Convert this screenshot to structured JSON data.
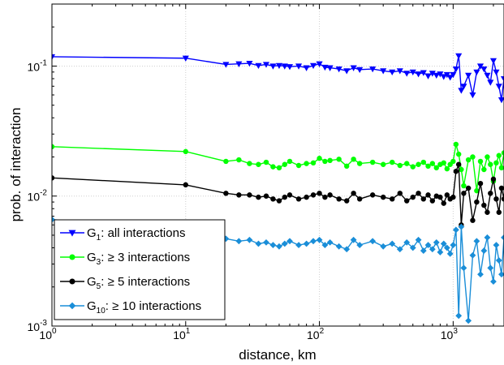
{
  "chart_data": {
    "type": "line",
    "title": "",
    "xlabel": "distance, km",
    "ylabel": "prob. of interaction",
    "xscale": "log",
    "yscale": "log",
    "xlim": [
      1,
      2400
    ],
    "ylim": [
      0.001,
      0.3
    ],
    "x_ticks": [
      {
        "base": "10",
        "exp": "0",
        "value": 1
      },
      {
        "base": "10",
        "exp": "1",
        "value": 10
      },
      {
        "base": "10",
        "exp": "2",
        "value": 100
      },
      {
        "base": "10",
        "exp": "3",
        "value": 1000
      }
    ],
    "y_ticks": [
      {
        "base": "10",
        "exp": "-3",
        "value": 0.001
      },
      {
        "base": "10",
        "exp": "-2",
        "value": 0.01
      },
      {
        "base": "10",
        "exp": "-1",
        "value": 0.1
      }
    ],
    "grid": true,
    "legend": {
      "placement": "bottom-left"
    },
    "series": [
      {
        "name": "G1: all interactions",
        "name_main": "G",
        "name_sub": "1",
        "name_rest": ": all interactions",
        "color": "#0000ff",
        "marker": "triangle-down",
        "x": [
          1,
          10,
          20,
          25,
          30,
          35,
          40,
          45,
          50,
          55,
          60,
          70,
          80,
          90,
          100,
          110,
          120,
          140,
          160,
          180,
          200,
          250,
          300,
          350,
          400,
          450,
          500,
          550,
          600,
          650,
          700,
          750,
          800,
          850,
          900,
          950,
          1000,
          1050,
          1100,
          1150,
          1200,
          1300,
          1400,
          1500,
          1600,
          1700,
          1800,
          1900,
          2000,
          2100,
          2200,
          2300,
          2400
        ],
        "y": [
          0.118,
          0.115,
          0.103,
          0.104,
          0.105,
          0.101,
          0.103,
          0.1,
          0.101,
          0.1,
          0.099,
          0.1,
          0.097,
          0.101,
          0.104,
          0.098,
          0.097,
          0.095,
          0.092,
          0.097,
          0.094,
          0.095,
          0.092,
          0.09,
          0.092,
          0.088,
          0.09,
          0.087,
          0.089,
          0.084,
          0.088,
          0.085,
          0.087,
          0.083,
          0.086,
          0.082,
          0.086,
          0.095,
          0.12,
          0.065,
          0.07,
          0.085,
          0.06,
          0.09,
          0.1,
          0.095,
          0.085,
          0.075,
          0.11,
          0.09,
          0.07,
          0.055,
          0.08
        ]
      },
      {
        "name": "G3: ≥ 3 interactions",
        "name_main": "G",
        "name_sub": "3",
        "name_rest": ": ≥ 3 interactions",
        "color": "#00ff00",
        "marker": "circle",
        "x": [
          1,
          10,
          20,
          25,
          30,
          35,
          40,
          45,
          50,
          55,
          60,
          70,
          80,
          90,
          100,
          110,
          120,
          140,
          160,
          180,
          200,
          250,
          300,
          350,
          400,
          450,
          500,
          550,
          600,
          650,
          700,
          750,
          800,
          850,
          900,
          950,
          1000,
          1050,
          1100,
          1150,
          1200,
          1300,
          1400,
          1500,
          1600,
          1700,
          1800,
          1900,
          2000,
          2100,
          2200,
          2300,
          2400
        ],
        "y": [
          0.024,
          0.022,
          0.0185,
          0.019,
          0.0178,
          0.0175,
          0.0182,
          0.0168,
          0.0165,
          0.0175,
          0.0185,
          0.0172,
          0.0178,
          0.018,
          0.0195,
          0.0185,
          0.0188,
          0.0192,
          0.017,
          0.0192,
          0.0178,
          0.0182,
          0.0175,
          0.0182,
          0.0172,
          0.0178,
          0.0168,
          0.0175,
          0.0182,
          0.017,
          0.0178,
          0.0165,
          0.0175,
          0.018,
          0.0162,
          0.0175,
          0.0185,
          0.025,
          0.021,
          0.016,
          0.012,
          0.019,
          0.02,
          0.011,
          0.0185,
          0.016,
          0.02,
          0.0175,
          0.013,
          0.018,
          0.0205,
          0.0165,
          0.0215
        ]
      },
      {
        "name": "G5: ≥ 5 interactions",
        "name_main": "G",
        "name_sub": "5",
        "name_rest": ": ≥ 5 interactions",
        "color": "#000000",
        "marker": "circle",
        "x": [
          1,
          10,
          20,
          25,
          30,
          35,
          40,
          45,
          50,
          55,
          60,
          70,
          80,
          90,
          100,
          110,
          120,
          140,
          160,
          180,
          200,
          250,
          300,
          350,
          400,
          450,
          500,
          550,
          600,
          650,
          700,
          750,
          800,
          850,
          900,
          950,
          1000,
          1050,
          1100,
          1150,
          1200,
          1300,
          1400,
          1500,
          1600,
          1700,
          1800,
          1900,
          2000,
          2100,
          2200,
          2300,
          2400
        ],
        "y": [
          0.0138,
          0.0122,
          0.0105,
          0.0102,
          0.0102,
          0.0098,
          0.01,
          0.0095,
          0.0092,
          0.0098,
          0.0102,
          0.0095,
          0.0098,
          0.0102,
          0.0105,
          0.0098,
          0.0102,
          0.0095,
          0.0092,
          0.0105,
          0.0095,
          0.0102,
          0.0098,
          0.0095,
          0.0105,
          0.0092,
          0.0098,
          0.0105,
          0.0095,
          0.0102,
          0.0092,
          0.01,
          0.0098,
          0.0088,
          0.0102,
          0.0095,
          0.0098,
          0.0155,
          0.0175,
          0.006,
          0.0105,
          0.0115,
          0.0065,
          0.009,
          0.0125,
          0.0085,
          0.0075,
          0.0105,
          0.0135,
          0.0095,
          0.0075,
          0.0115,
          0.0095
        ]
      },
      {
        "name": "G10: ≥ 10 interactions",
        "name_main": "G",
        "name_sub": "10",
        "name_rest": ": ≥ 10 interactions",
        "color": "#1a8ed8",
        "marker": "diamond",
        "x": [
          1,
          10,
          20,
          25,
          30,
          35,
          40,
          45,
          50,
          55,
          60,
          70,
          80,
          90,
          100,
          110,
          120,
          140,
          160,
          180,
          200,
          250,
          300,
          350,
          400,
          450,
          500,
          550,
          600,
          650,
          700,
          750,
          800,
          850,
          900,
          950,
          1000,
          1050,
          1100,
          1150,
          1200,
          1300,
          1400,
          1500,
          1600,
          1700,
          1800,
          1900,
          2000,
          2100,
          2200,
          2300,
          2400
        ],
        "y": [
          0.0066,
          0.0055,
          0.0047,
          0.0045,
          0.0046,
          0.0043,
          0.0044,
          0.0042,
          0.0041,
          0.0043,
          0.0045,
          0.0042,
          0.0043,
          0.0045,
          0.0046,
          0.0042,
          0.0044,
          0.0041,
          0.0039,
          0.0046,
          0.0042,
          0.0045,
          0.0041,
          0.0043,
          0.0039,
          0.0044,
          0.004,
          0.0046,
          0.0038,
          0.0042,
          0.0039,
          0.0044,
          0.0037,
          0.0043,
          0.004,
          0.0036,
          0.0042,
          0.0055,
          0.0012,
          0.0058,
          0.0028,
          0.0011,
          0.0035,
          0.0045,
          0.0025,
          0.0038,
          0.0048,
          0.0028,
          0.0022,
          0.0042,
          0.0032,
          0.0025,
          0.0048
        ]
      }
    ]
  }
}
